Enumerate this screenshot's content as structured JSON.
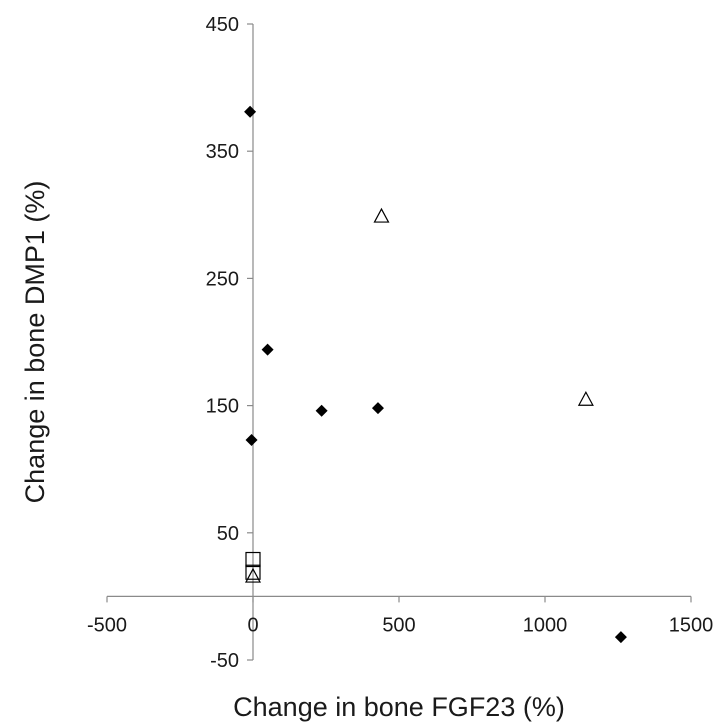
{
  "chart_data": {
    "type": "scatter",
    "xlabel": "Change in bone FGF23 (%)",
    "ylabel": "Change in bone DMP1 (%)",
    "xlim": [
      -500,
      1500
    ],
    "ylim": [
      -50,
      450
    ],
    "xticks": [
      -500,
      0,
      500,
      1000,
      1500
    ],
    "yticks": [
      -50,
      50,
      150,
      250,
      350,
      450
    ],
    "grid": false,
    "series": [
      {
        "marker": "diamond-filled",
        "color": "#000000",
        "points": [
          {
            "x": -10,
            "y": 381
          },
          {
            "x": 50,
            "y": 194
          },
          {
            "x": 235,
            "y": 146
          },
          {
            "x": 428,
            "y": 148
          },
          {
            "x": -5,
            "y": 123
          },
          {
            "x": 1260,
            "y": -32
          }
        ]
      },
      {
        "marker": "triangle-open",
        "color": "#000000",
        "points": [
          {
            "x": 440,
            "y": 299
          },
          {
            "x": 1140,
            "y": 155
          },
          {
            "x": 0,
            "y": 16
          }
        ]
      },
      {
        "marker": "square-open",
        "color": "#000000",
        "points": [
          {
            "x": 0,
            "y": 29
          },
          {
            "x": 0,
            "y": 19
          }
        ]
      }
    ]
  }
}
